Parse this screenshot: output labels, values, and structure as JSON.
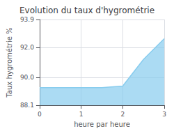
{
  "chart_data": {
    "type": "area",
    "title": "Evolution du taux d'hygrométrie",
    "xlabel": "heure par heure",
    "ylabel": "Taux hygrométrie %",
    "x": [
      0,
      0.5,
      1.0,
      1.5,
      2.0,
      2.5,
      3.0
    ],
    "values": [
      89.3,
      89.3,
      89.3,
      89.3,
      89.4,
      91.2,
      92.6
    ],
    "color": "#88ccee",
    "xlim": [
      0,
      3
    ],
    "xticks": [
      0,
      1,
      2,
      3
    ],
    "ylim": [
      88.1,
      93.9
    ],
    "yticks": [
      88.1,
      {
        "value": 90.0,
        "label": "90.0"
      },
      {
        "value": 92.0,
        "label": "92.0"
      },
      93.9
    ],
    "grid": true
  }
}
